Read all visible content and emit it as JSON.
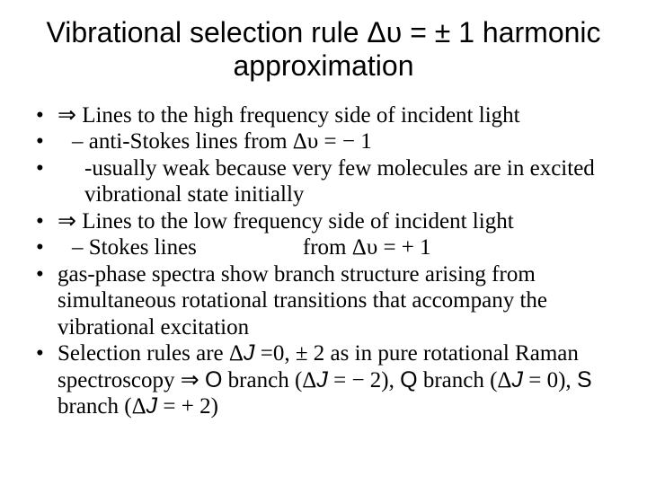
{
  "colors": {
    "background": "#ffffff",
    "text": "#000000"
  },
  "typography": {
    "title_font": "Arial",
    "title_size_pt": 32,
    "title_weight": 400,
    "body_font": "Times New Roman",
    "body_size_pt": 25,
    "body_weight": 400
  },
  "title": "Vibrational selection rule Δυ = ± 1 harmonic approximation",
  "bullets": {
    "b1_prefix": "⇒ ",
    "b1": "Lines to the high frequency side of incident light",
    "b2": "– anti-Stokes lines from Δυ = − 1",
    "b3": "-usually weak because very few molecules are in excited vibrational state initially",
    "b4_prefix": "⇒ ",
    "b4": "Lines to the low frequency side of incident light",
    "b5a": "– Stokes lines",
    "b5b": "from Δυ = + 1",
    "b6": "gas-phase spectra show branch structure arising from simultaneous rotational transitions that accompany the vibrational excitation",
    "b7a": "Selection rules are Δ",
    "b7b": "J",
    "b7c": " =0, ± 2 as in pure rotational Raman spectroscopy ⇒ ",
    "b7d": "O",
    "b7e": " branch (Δ",
    "b7f": "J",
    "b7g": " = − 2), ",
    "b7h": "Q",
    "b7i": " branch (Δ",
    "b7j": "J",
    "b7k": " = 0), ",
    "b7l": "S",
    "b7m": " branch (Δ",
    "b7n": "J",
    "b7o": " = + 2)"
  }
}
